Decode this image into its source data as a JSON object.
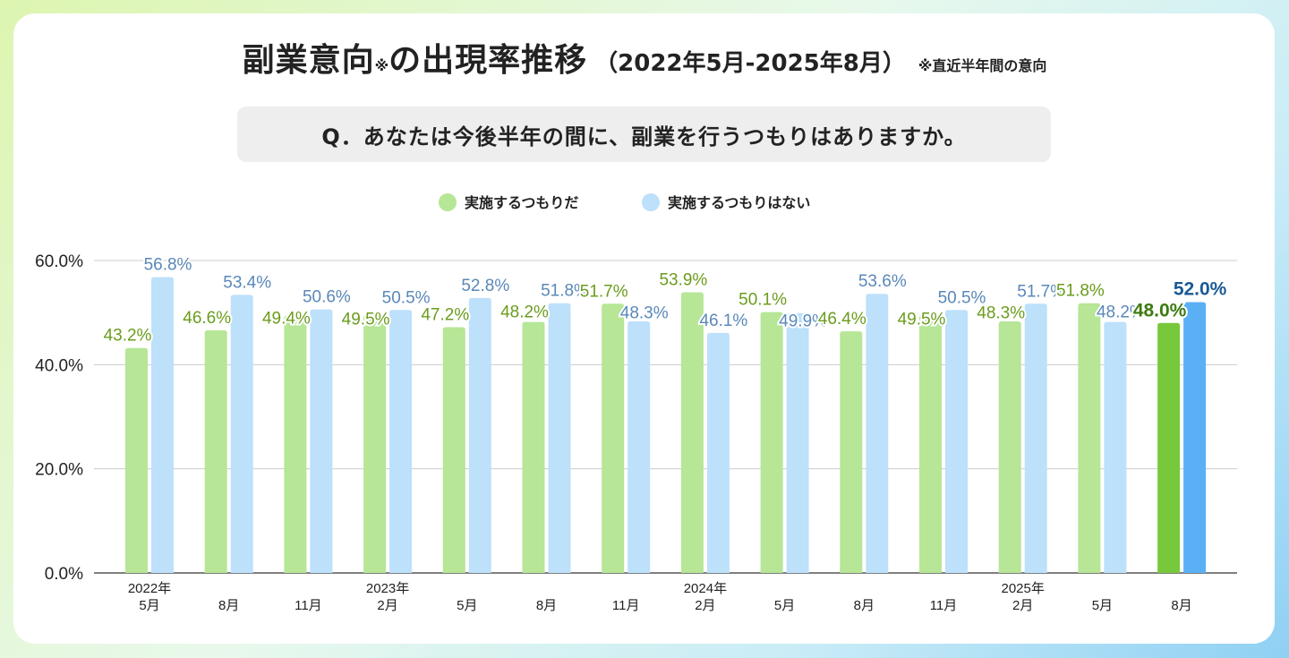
{
  "title": {
    "main": "副業意向",
    "mark": "※",
    "rest": "の出現率推移",
    "period": "（2022年5月-2025年8月）",
    "note": "※直近半年間の意向"
  },
  "question": "Q．あなたは今後半年の間に、副業を行うつもりはありますか。",
  "colors": {
    "series1": "#b6e696",
    "series1_highlight": "#78c83c",
    "series1_label": "#6b9c1c",
    "series1_label_highlight": "#3d7a10",
    "series2": "#bde0fb",
    "series2_highlight": "#5bb0f5",
    "series2_label": "#5a88b8",
    "series2_label_highlight": "#1a5a94"
  },
  "chart_data": {
    "type": "bar",
    "categories": [
      [
        "2022年",
        "5月"
      ],
      [
        "",
        "8月"
      ],
      [
        "",
        "11月"
      ],
      [
        "2023年",
        "2月"
      ],
      [
        "",
        "5月"
      ],
      [
        "",
        "8月"
      ],
      [
        "",
        "11月"
      ],
      [
        "2024年",
        "2月"
      ],
      [
        "",
        "5月"
      ],
      [
        "",
        "8月"
      ],
      [
        "",
        "11月"
      ],
      [
        "2025年",
        "2月"
      ],
      [
        "",
        "5月"
      ],
      [
        "",
        "8月"
      ]
    ],
    "series": [
      {
        "name": "実施するつもりだ",
        "values": [
          43.2,
          46.6,
          49.4,
          49.5,
          47.2,
          48.2,
          51.7,
          53.9,
          50.1,
          46.4,
          49.5,
          48.3,
          51.8,
          48.0
        ],
        "labels": [
          "43.2%",
          "46.6%",
          "49.4%",
          "49.5%",
          "47.2%",
          "48.2%",
          "51.7%",
          "53.9%",
          "50.1%",
          "46.4%",
          "49.5%",
          "48.3%",
          "51.8%",
          "48.0%"
        ]
      },
      {
        "name": "実施するつもりはない",
        "values": [
          56.8,
          53.4,
          50.6,
          50.5,
          52.8,
          51.8,
          48.3,
          46.1,
          49.9,
          53.6,
          50.5,
          51.7,
          48.2,
          52.0
        ],
        "labels": [
          "56.8%",
          "53.4%",
          "50.6%",
          "50.5%",
          "52.8%",
          "51.8%",
          "48.3%",
          "46.1%",
          "49.9%",
          "53.6%",
          "50.5%",
          "51.7%",
          "48.2%",
          "52.0%"
        ]
      }
    ],
    "highlight_index": 13,
    "ylim": [
      0,
      60
    ],
    "yticks": [
      "0.0%",
      "20.0%",
      "40.0%",
      "60.0%"
    ],
    "ytick_values": [
      0,
      20,
      40,
      60
    ],
    "grid": true,
    "legend_position": "top-center"
  }
}
